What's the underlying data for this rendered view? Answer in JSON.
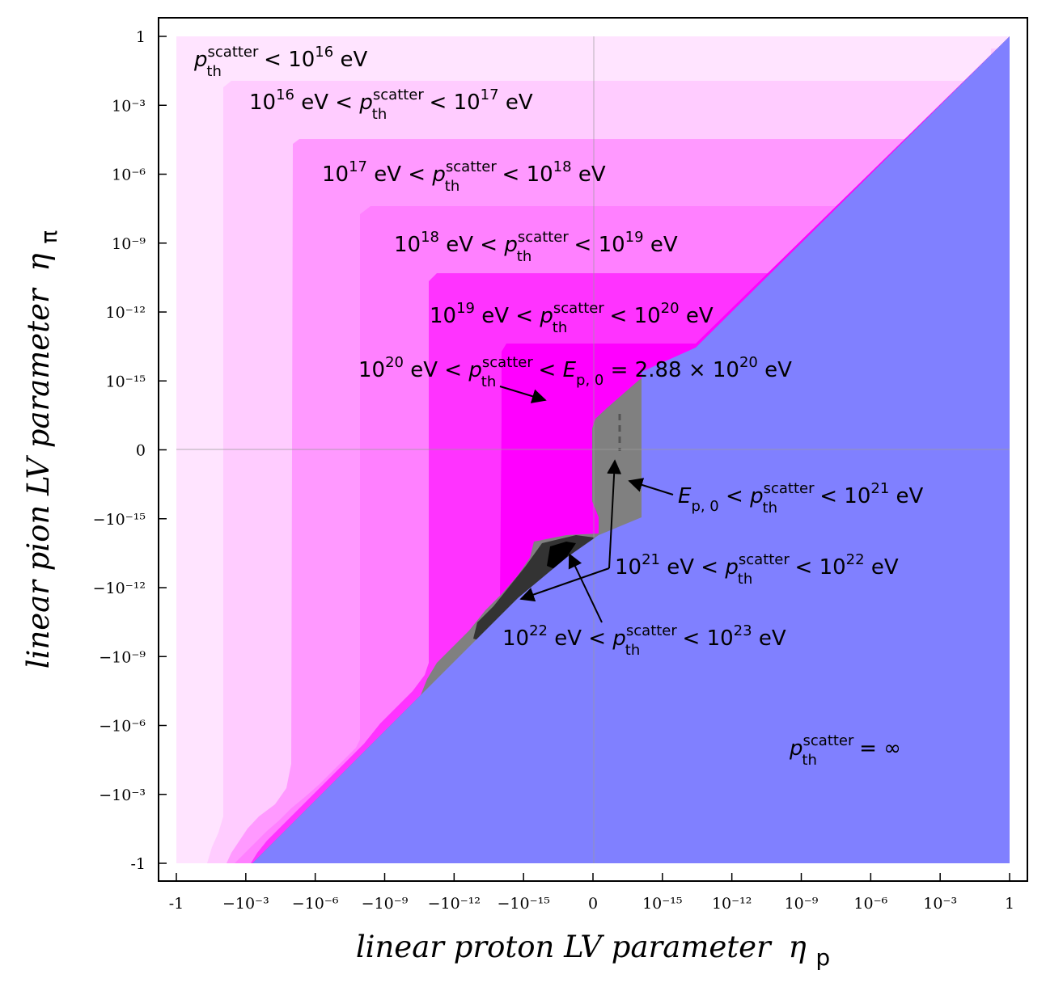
{
  "chart_data": {
    "type": "heatmap",
    "title": "",
    "xlabel": "linear proton LV parameter",
    "xlabel_symbol": "η",
    "xlabel_subscript": "p",
    "ylabel": "linear pion LV parameter",
    "ylabel_symbol": "η",
    "ylabel_subscript": "π",
    "scale": "symmetric log (sign · log10|η|), linear band around 0",
    "xticks": [
      "-1",
      "−10⁻³",
      "−10⁻⁶",
      "−10⁻⁹",
      "−10⁻¹²",
      "−10⁻¹⁵",
      "0",
      "10⁻¹⁵",
      "10⁻¹²",
      "10⁻⁹",
      "10⁻⁶",
      "10⁻³",
      "1"
    ],
    "yticks": [
      "1",
      "10⁻³",
      "10⁻⁶",
      "10⁻⁹",
      "10⁻¹²",
      "10⁻¹⁵",
      "0",
      "−10⁻¹⁵",
      "−10⁻¹²",
      "−10⁻⁹",
      "−10⁻⁶",
      "−10⁻³",
      "-1"
    ],
    "regions": [
      {
        "id": "r16",
        "range_eV": [
          0,
          1e+16
        ],
        "color": "#ffe4ff"
      },
      {
        "id": "r17",
        "range_eV": [
          1e+16,
          1e+17
        ],
        "color": "#ffccff"
      },
      {
        "id": "r18",
        "range_eV": [
          1e+17,
          1e+18
        ],
        "color": "#ff99ff"
      },
      {
        "id": "r19",
        "range_eV": [
          1e+18,
          1e+19
        ],
        "color": "#ff80ff"
      },
      {
        "id": "r20",
        "range_eV": [
          1e+19,
          1e+20
        ],
        "color": "#ff33ff"
      },
      {
        "id": "rEp0",
        "range_eV": [
          1e+20,
          2.88e+20
        ],
        "color": "#ff00ff"
      },
      {
        "id": "r21",
        "range_eV": [
          2.88e+20,
          1e+21
        ],
        "color": "#808080"
      },
      {
        "id": "r22",
        "range_eV": [
          1e+21,
          1e+22
        ],
        "color": "#333333"
      },
      {
        "id": "r23",
        "range_eV": [
          1e+22,
          1e+23
        ],
        "color": "#000000"
      },
      {
        "id": "rinf",
        "range_eV": "infinite",
        "color": "#8080ff"
      }
    ],
    "annotations": {
      "a16": {
        "pre": "p",
        "sub": "th",
        "sup": "scatter",
        "post": " < 10",
        "post_sup": "16",
        "tail": " eV"
      },
      "a17": {
        "pre": "10",
        "pre_sup": "16",
        "mid": " eV < ",
        "p": "p",
        "sub": "th",
        "sup": "scatter",
        "post": " < 10",
        "post_sup": "17",
        "tail": " eV"
      },
      "a18": {
        "pre": "10",
        "pre_sup": "17",
        "mid": " eV < ",
        "p": "p",
        "sub": "th",
        "sup": "scatter",
        "post": " < 10",
        "post_sup": "18",
        "tail": " eV"
      },
      "a19": {
        "pre": "10",
        "pre_sup": "18",
        "mid": " eV < ",
        "p": "p",
        "sub": "th",
        "sup": "scatter",
        "post": " < 10",
        "post_sup": "19",
        "tail": " eV"
      },
      "a20": {
        "pre": "10",
        "pre_sup": "19",
        "mid": " eV < ",
        "p": "p",
        "sub": "th",
        "sup": "scatter",
        "post": " < 10",
        "post_sup": "20",
        "tail": " eV"
      },
      "aEp0": {
        "pre": "10",
        "pre_sup": "20",
        "mid": " eV < ",
        "p": "p",
        "sub": "th",
        "sup": "scatter",
        "post": " < ",
        "E": "E",
        "E_sub": "p, 0",
        "eq": " = 2.88 × 10",
        "eq_sup": "20",
        "tail": " eV"
      },
      "a21": {
        "E": "E",
        "E_sub": "p, 0",
        "mid": " < ",
        "p": "p",
        "sub": "th",
        "sup": "scatter",
        "post": " < 10",
        "post_sup": "21",
        "tail": " eV"
      },
      "a22": {
        "pre": "10",
        "pre_sup": "21",
        "mid": " eV < ",
        "p": "p",
        "sub": "th",
        "sup": "scatter",
        "post": " < 10",
        "post_sup": "22",
        "tail": " eV"
      },
      "a23": {
        "pre": "10",
        "pre_sup": "22",
        "mid": " eV < ",
        "p": "p",
        "sub": "th",
        "sup": "scatter",
        "post": " < 10",
        "post_sup": "23",
        "tail": " eV"
      },
      "ainf": {
        "p": "p",
        "sub": "th",
        "sup": "scatter",
        "post": " = ∞"
      }
    }
  }
}
